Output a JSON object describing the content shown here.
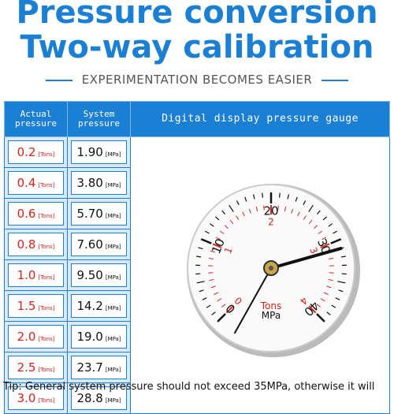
{
  "header": {
    "title_lines": [
      "Pressure conversion",
      "Two-way calibration"
    ],
    "subtitle": "EXPERIMENTATION BECOMES EASIER"
  },
  "table": {
    "columns": [
      [
        "Actual",
        "pressure"
      ],
      [
        "System",
        "pressure"
      ],
      [
        "Digital display pressure gauge"
      ]
    ],
    "rows": [
      {
        "actual": "0.2",
        "actual_unit": "[Tons]",
        "system": "1.90",
        "system_unit": "[MPa]"
      },
      {
        "actual": "0.4",
        "actual_unit": "[Tons]",
        "system": "3.80",
        "system_unit": "[MPa]"
      },
      {
        "actual": "0.6",
        "actual_unit": "[Tons]",
        "system": "5.70",
        "system_unit": "[MPa]"
      },
      {
        "actual": "0.8",
        "actual_unit": "[Tons]",
        "system": "7.60",
        "system_unit": "[MPa]"
      },
      {
        "actual": "1.0",
        "actual_unit": "[Tons]",
        "system": "9.50",
        "system_unit": "[MPa]"
      },
      {
        "actual": "1.5",
        "actual_unit": "[Tons]",
        "system": "14.2",
        "system_unit": "[MPa]"
      },
      {
        "actual": "2.0",
        "actual_unit": "[Tons]",
        "system": "19.0",
        "system_unit": "[MPa]"
      },
      {
        "actual": "2.5",
        "actual_unit": "[Tons]",
        "system": "23.7",
        "system_unit": "[MPa]"
      },
      {
        "actual": "3.0",
        "actual_unit": "[Tons]",
        "system": "28.8",
        "system_unit": "[MPa]"
      }
    ]
  },
  "gauge": {
    "outer_labels": [
      "0",
      "10",
      "20",
      "30",
      "40"
    ],
    "inner_labels": [
      "0",
      "1",
      "2",
      "3",
      "4"
    ],
    "unit_top": "Tons",
    "unit_bottom": "MPa"
  },
  "tip": "Tip: General system pressure should not exceed 35MPa, otherwise it will"
}
